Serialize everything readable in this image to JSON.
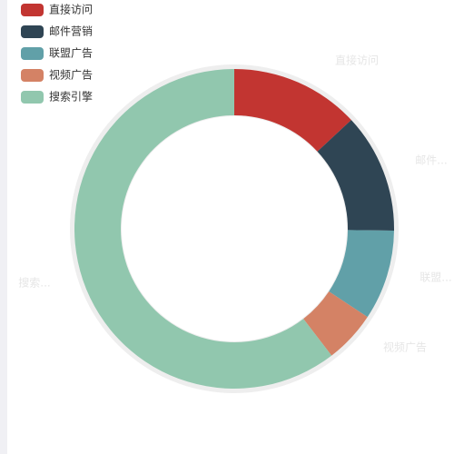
{
  "chart_data": {
    "type": "donut",
    "legend_position": "top-left",
    "series": [
      {
        "name": "直接访问",
        "color": "#c23531",
        "value": 335
      },
      {
        "name": "邮件营销",
        "color": "#2f4554",
        "value": 310
      },
      {
        "name": "联盟广告",
        "color": "#61a0a8",
        "value": 234
      },
      {
        "name": "视频广告",
        "color": "#d48265",
        "value": 135
      },
      {
        "name": "搜索引擎",
        "color": "#91c7ae",
        "value": 1548
      }
    ],
    "slice_labels": [
      "直接访问",
      "邮件...",
      "联盟...",
      "视频广告",
      "搜索..."
    ]
  }
}
